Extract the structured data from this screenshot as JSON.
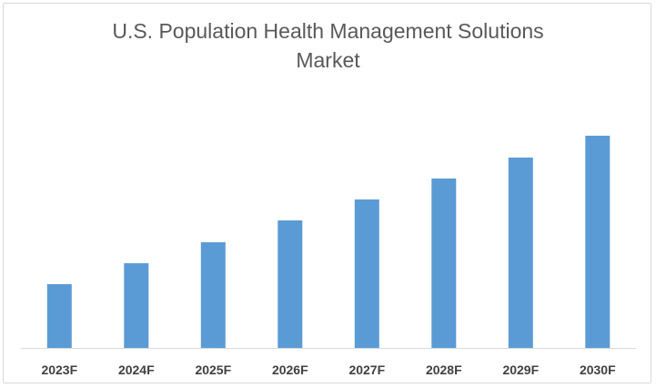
{
  "chart_data": {
    "type": "bar",
    "title_lines": [
      "U.S. Population Health Management Solutions",
      "Market"
    ],
    "categories": [
      "2023F",
      "2024F",
      "2025F",
      "2026F",
      "2027F",
      "2028F",
      "2029F",
      "2030F"
    ],
    "values": [
      70,
      93,
      116,
      140,
      163,
      186,
      209,
      233
    ],
    "xlabel": "",
    "ylabel": "",
    "ylim": [
      0,
      260
    ],
    "grid": false,
    "legend": "none",
    "bar_color": "#5B9BD5",
    "axis_color": "#D9D9D9"
  }
}
